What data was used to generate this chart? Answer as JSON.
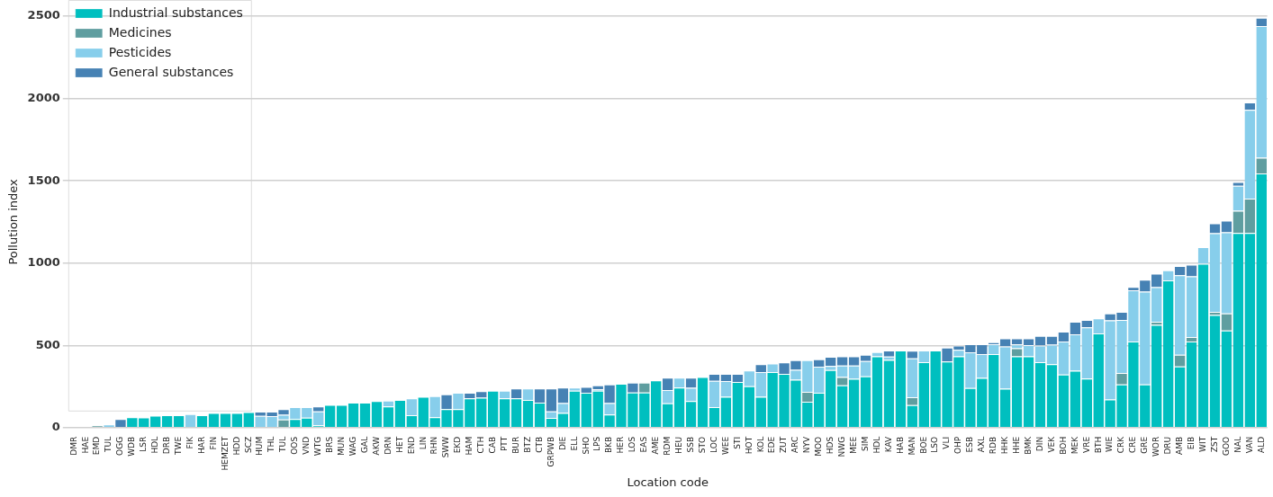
{
  "chart_data": {
    "type": "bar",
    "stacked": true,
    "xlabel": "Location code",
    "ylabel": "Pollution index",
    "ylim": [
      0,
      2500
    ],
    "yticks": [
      0,
      500,
      1000,
      1500,
      2000,
      2500
    ],
    "grid": "y",
    "legend": "top left",
    "categories": [
      "DMR",
      "HAE",
      "EMD",
      "TUL",
      "OGG",
      "WDB",
      "LSR",
      "HDL",
      "DRB",
      "TWE",
      "FIK",
      "HAR",
      "FIN",
      "HEMZET",
      "HDD",
      "SCZ",
      "HUM",
      "THL",
      "TUL",
      "OOS",
      "VND",
      "WTG",
      "BRS",
      "MUN",
      "WAG",
      "GAL",
      "AKW",
      "DRN",
      "HET",
      "END",
      "LIN",
      "RHN",
      "SWW",
      "EKD",
      "HAM",
      "CTH",
      "CAB",
      "PTT",
      "BUR",
      "BTZ",
      "CTB",
      "GRPWB",
      "DIE",
      "ELL",
      "SHO",
      "LPS",
      "BKB",
      "HER",
      "LOS",
      "EAS",
      "AME",
      "RDM",
      "HEU",
      "SSB",
      "STO",
      "LOC",
      "WEE",
      "STI",
      "HOT",
      "KOL",
      "EDE",
      "ZUT",
      "ARC",
      "NYV",
      "MOO",
      "HDS",
      "NWG",
      "MEE",
      "SIM",
      "HDL",
      "KAV",
      "HAB",
      "MAN",
      "BOE",
      "LSO",
      "VLI",
      "OHP",
      "ESB",
      "AXL",
      "RDB",
      "HHK",
      "HHE",
      "BMK",
      "DIN",
      "VEK",
      "BOH",
      "MEK",
      "VRE",
      "BTH",
      "WIE",
      "CRK",
      "CRE",
      "GRE",
      "WOR",
      "DRU",
      "AMB",
      "EIB",
      "WIT",
      "ZST",
      "GOO",
      "NAL",
      "VAN",
      "ALD"
    ],
    "series": [
      {
        "name": "Industrial substances",
        "color": "#00bfbf",
        "values": [
          0,
          0,
          0,
          0,
          0,
          63,
          62,
          73,
          75,
          75,
          0,
          75,
          89,
          89,
          89,
          95,
          0,
          0,
          0,
          53,
          60,
          14,
          139,
          139,
          152,
          152,
          162,
          129,
          168,
          75,
          188,
          63,
          113,
          113,
          178,
          182,
          224,
          178,
          178,
          168,
          152,
          59,
          89,
          224,
          212,
          224,
          79,
          267,
          214,
          214,
          287,
          148,
          244,
          162,
          307,
          125,
          188,
          277,
          251,
          188,
          337,
          327,
          291,
          158,
          212,
          350,
          257,
          297,
          312,
          433,
          412,
          469,
          137,
          398,
          469,
          402,
          433,
          241,
          302,
          447,
          237,
          433,
          433,
          398,
          386,
          322,
          346,
          298,
          573,
          171,
          262,
          523,
          262,
          624,
          895,
          372,
          523,
          996,
          684,
          590,
          1183,
          1183,
          1545
        ]
      },
      {
        "name": "Medicines",
        "color": "#5f9ea0",
        "values": [
          0,
          0,
          14,
          0,
          0,
          0,
          0,
          0,
          0,
          0,
          0,
          0,
          0,
          0,
          0,
          0,
          0,
          0,
          50,
          0,
          0,
          0,
          0,
          0,
          0,
          0,
          0,
          0,
          0,
          0,
          0,
          0,
          0,
          0,
          0,
          0,
          0,
          0,
          0,
          0,
          0,
          0,
          0,
          0,
          0,
          0,
          0,
          0,
          0,
          59,
          0,
          0,
          0,
          0,
          0,
          0,
          0,
          0,
          0,
          0,
          0,
          0,
          0,
          60,
          0,
          0,
          50,
          0,
          0,
          0,
          0,
          0,
          48,
          0,
          0,
          0,
          0,
          0,
          0,
          0,
          0,
          50,
          0,
          0,
          0,
          0,
          0,
          0,
          0,
          0,
          70,
          0,
          0,
          20,
          0,
          71,
          28,
          0,
          20,
          104,
          135,
          209,
          95
        ]
      },
      {
        "name": "Pesticides",
        "color": "#87ceeb",
        "values": [
          0,
          0,
          0,
          20,
          0,
          0,
          0,
          0,
          0,
          0,
          83,
          0,
          0,
          0,
          0,
          0,
          72,
          70,
          28,
          72,
          65,
          85,
          0,
          0,
          0,
          0,
          0,
          35,
          0,
          103,
          0,
          129,
          0,
          99,
          0,
          0,
          0,
          46,
          0,
          70,
          0,
          40,
          60,
          20,
          0,
          8,
          70,
          0,
          0,
          0,
          0,
          80,
          59,
          80,
          0,
          160,
          95,
          0,
          96,
          150,
          53,
          0,
          60,
          192,
          158,
          24,
          70,
          80,
          93,
          26,
          20,
          0,
          236,
          71,
          0,
          0,
          40,
          217,
          145,
          60,
          256,
          22,
          68,
          101,
          118,
          201,
          221,
          311,
          91,
          480,
          322,
          312,
          565,
          210,
          61,
          483,
          368,
          101,
          477,
          493,
          151,
          539,
          800
        ]
      },
      {
        "name": "General substances",
        "color": "#4682b4",
        "values": [
          0,
          0,
          0,
          0,
          53,
          0,
          0,
          0,
          0,
          0,
          0,
          0,
          0,
          0,
          0,
          0,
          25,
          28,
          35,
          0,
          0,
          30,
          0,
          0,
          0,
          0,
          0,
          0,
          0,
          0,
          0,
          0,
          89,
          0,
          34,
          40,
          0,
          0,
          60,
          0,
          86,
          139,
          95,
          0,
          36,
          25,
          114,
          0,
          59,
          0,
          0,
          75,
          0,
          61,
          0,
          42,
          44,
          50,
          0,
          48,
          0,
          69,
          59,
          0,
          46,
          56,
          56,
          56,
          38,
          0,
          37,
          0,
          46,
          0,
          0,
          85,
          26,
          49,
          60,
          12,
          50,
          38,
          42,
          58,
          53,
          60,
          77,
          45,
          0,
          43,
          50,
          20,
          72,
          82,
          0,
          56,
          71,
          0,
          60,
          71,
          24,
          45,
          50
        ]
      }
    ]
  }
}
